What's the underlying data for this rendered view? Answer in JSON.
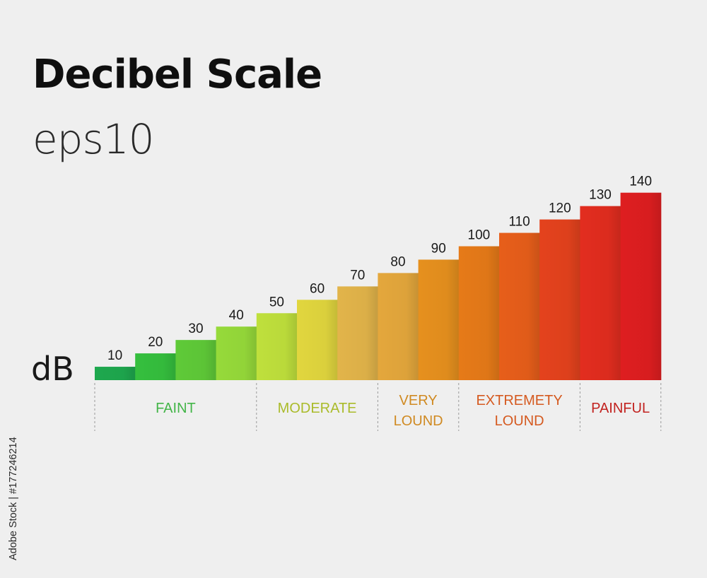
{
  "title": "Decibel Scale",
  "subtitle": "eps10",
  "stock_id": "Adobe Stock | #177246214",
  "chart_data": {
    "type": "bar",
    "ylabel": "dB",
    "categories": [
      "10",
      "20",
      "30",
      "40",
      "50",
      "60",
      "70",
      "80",
      "90",
      "100",
      "110",
      "120",
      "130",
      "140"
    ],
    "values": [
      10,
      20,
      30,
      40,
      50,
      60,
      70,
      80,
      90,
      100,
      110,
      120,
      130,
      140
    ],
    "colors": [
      "#1ea84e",
      "#35bf3e",
      "#5fca38",
      "#96da3a",
      "#bfe03c",
      "#e1d63e",
      "#e2b44a",
      "#e4a73c",
      "#e6901e",
      "#e67a18",
      "#e75e1a",
      "#e4421d",
      "#e22d1f",
      "#de1e20"
    ],
    "categories_bands": [
      {
        "label": "FAINT",
        "color": "#43b548",
        "from": 0,
        "to": 4
      },
      {
        "label": "MODERATE",
        "color": "#aabb2a",
        "from": 4,
        "to": 7
      },
      {
        "label": "VERY\nLOUND",
        "color": "#d08a22",
        "from": 7,
        "to": 9
      },
      {
        "label": "EXTREMETY\nLOUND",
        "color": "#d55a20",
        "from": 9,
        "to": 12
      },
      {
        "label": "PAINFUL",
        "color": "#c22320",
        "from": 12,
        "to": 14
      }
    ]
  }
}
